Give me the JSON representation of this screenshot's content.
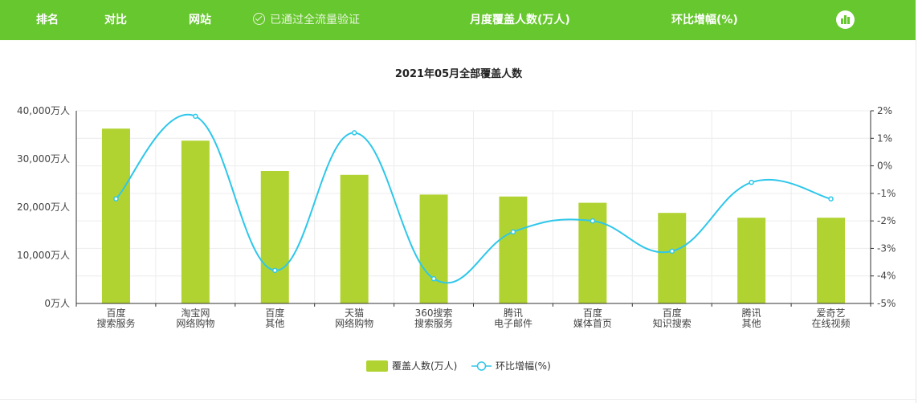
{
  "header": {
    "rank_label": "排名",
    "compare_label": "对比",
    "site_label": "网站",
    "verified_text": "已通过全流量验证",
    "monthly_label": "月度覆盖人数(万人)",
    "change_label": "环比增幅(%)",
    "chart_icon": "bar-chart-icon"
  },
  "colors": {
    "header_bg": "#67c72e",
    "bar": "#b1d332",
    "line": "#2ec7ea"
  },
  "chart_data": {
    "type": "bar",
    "title": "2021年05月全部覆盖人数",
    "categories": [
      [
        "百度",
        "搜索服务"
      ],
      [
        "淘宝网",
        "网络购物"
      ],
      [
        "百度",
        "其他"
      ],
      [
        "天猫",
        "网络购物"
      ],
      [
        "360搜索",
        "搜索服务"
      ],
      [
        "腾讯",
        "电子邮件"
      ],
      [
        "百度",
        "媒体首页"
      ],
      [
        "百度",
        "知识搜索"
      ],
      [
        "腾讯",
        "其他"
      ],
      [
        "爱奇艺",
        "在线视频"
      ]
    ],
    "series": [
      {
        "name": "覆盖人数(万人)",
        "type": "bar",
        "axis": "left",
        "values": [
          36300,
          33800,
          27500,
          26700,
          22600,
          22200,
          20900,
          18800,
          17800,
          17800
        ]
      },
      {
        "name": "环比增幅(%)",
        "type": "line",
        "axis": "right",
        "values": [
          -1.2,
          1.8,
          -3.8,
          1.2,
          -4.1,
          -2.4,
          -2.0,
          -3.1,
          -0.6,
          -1.2
        ]
      }
    ],
    "y_left": {
      "min": 0,
      "max": 40000,
      "ticks": [
        "0万人",
        "10,000万人",
        "20,000万人",
        "30,000万人",
        "40,000万人"
      ]
    },
    "y_right": {
      "min": -5,
      "max": 2,
      "ticks": [
        "-5%",
        "-4%",
        "-3%",
        "-2%",
        "-1%",
        "0%",
        "1%",
        "2%"
      ]
    },
    "grid": true,
    "legend_position": "bottom-center"
  }
}
